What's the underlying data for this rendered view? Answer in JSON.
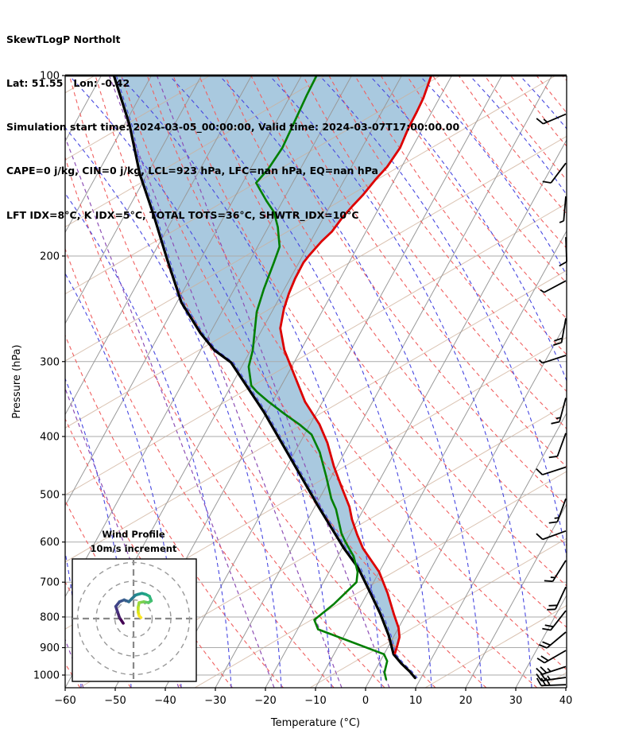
{
  "header": {
    "title": "SkewTLogP Northolt",
    "location": "Lat: 51.55   Lon: -0.42",
    "times": "Simulation start time: 2024-03-05_00:00:00, Valid time: 2024-03-07T17:00:00.00",
    "indices1": "CAPE=0 j/kg, CIN=0 j/kg, LCL=923 hPa, LFC=nan hPa, EQ=nan hPa",
    "indices2": "LFT IDX=8°C, K IDX=5°C, TOTAL TOTS=36°C, SHWTR_IDX=10°C"
  },
  "chart_data": {
    "type": "line",
    "subtype": "skewt_logp",
    "title": "SkewTLogP Northolt",
    "xlabel": "Temperature (°C)",
    "ylabel": "Pressure (hPa)",
    "pressure_ticks": [
      100,
      200,
      300,
      400,
      500,
      600,
      700,
      800,
      900,
      1000
    ],
    "temp_ticks": [
      -60,
      -50,
      -40,
      -30,
      -20,
      -10,
      0,
      10,
      20,
      30,
      40
    ],
    "ylim": [
      100,
      1050
    ],
    "xlim": [
      -60,
      40
    ],
    "grid": true,
    "legend_position": "none",
    "series": [
      {
        "name": "temperature",
        "color": "#dd0000",
        "points": [
          [
            100,
            -54.1
          ],
          [
            109,
            -53.2
          ],
          [
            115,
            -53.0
          ],
          [
            122,
            -52.9
          ],
          [
            132,
            -52.4
          ],
          [
            142,
            -52.9
          ],
          [
            149,
            -53.8
          ],
          [
            158,
            -54.6
          ],
          [
            165,
            -55.5
          ],
          [
            173,
            -56.3
          ],
          [
            182,
            -56.8
          ],
          [
            189,
            -57.8
          ],
          [
            199,
            -58.7
          ],
          [
            205,
            -59.1
          ],
          [
            218,
            -59.0
          ],
          [
            231,
            -58.6
          ],
          [
            245,
            -57.9
          ],
          [
            264,
            -56.5
          ],
          [
            287,
            -53.3
          ],
          [
            310,
            -49.5
          ],
          [
            350,
            -43.5
          ],
          [
            382,
            -38.1
          ],
          [
            410,
            -34.5
          ],
          [
            449,
            -30.6
          ],
          [
            486,
            -26.8
          ],
          [
            524,
            -23.1
          ],
          [
            550,
            -21.2
          ],
          [
            583,
            -18.5
          ],
          [
            615,
            -15.8
          ],
          [
            673,
            -10.0
          ],
          [
            730,
            -6.0
          ],
          [
            792,
            -2.4
          ],
          [
            834,
            0.0
          ],
          [
            864,
            1.2
          ],
          [
            893,
            1.7
          ],
          [
            920,
            2.1
          ]
        ]
      },
      {
        "name": "dewpoint",
        "color": "#007f00",
        "points": [
          [
            100,
            -77.0
          ],
          [
            108,
            -76.8
          ],
          [
            118,
            -76.4
          ],
          [
            132,
            -75.9
          ],
          [
            143,
            -76.4
          ],
          [
            151,
            -77.3
          ],
          [
            162,
            -73.2
          ],
          [
            169,
            -70.5
          ],
          [
            179,
            -68.1
          ],
          [
            193,
            -65.6
          ],
          [
            205,
            -65.0
          ],
          [
            227,
            -64.1
          ],
          [
            248,
            -63.0
          ],
          [
            287,
            -59.6
          ],
          [
            306,
            -58.6
          ],
          [
            329,
            -56.0
          ],
          [
            337,
            -54.2
          ],
          [
            350,
            -50.8
          ],
          [
            367,
            -46.2
          ],
          [
            382,
            -42.1
          ],
          [
            397,
            -38.6
          ],
          [
            425,
            -35.0
          ],
          [
            467,
            -31.0
          ],
          [
            508,
            -27.6
          ],
          [
            529,
            -25.5
          ],
          [
            580,
            -21.8
          ],
          [
            598,
            -20.2
          ],
          [
            634,
            -16.8
          ],
          [
            673,
            -14.3
          ],
          [
            700,
            -13.4
          ],
          [
            761,
            -15.5
          ],
          [
            809,
            -17.7
          ],
          [
            839,
            -15.9
          ],
          [
            923,
            0.0
          ],
          [
            948,
            1.4
          ],
          [
            990,
            2.1
          ],
          [
            1017,
            3.2
          ]
        ]
      },
      {
        "name": "parcel",
        "color": "#000000",
        "points": [
          [
            100,
            -117.5
          ],
          [
            121,
            -108.9
          ],
          [
            146,
            -101.5
          ],
          [
            171,
            -94.2
          ],
          [
            202,
            -86.8
          ],
          [
            239,
            -79.1
          ],
          [
            269,
            -71.9
          ],
          [
            287,
            -67.3
          ],
          [
            301,
            -62.6
          ],
          [
            364,
            -50.6
          ],
          [
            446,
            -38.7
          ],
          [
            521,
            -29.6
          ],
          [
            615,
            -19.6
          ],
          [
            662,
            -14.7
          ],
          [
            726,
            -9.7
          ],
          [
            790,
            -5.2
          ],
          [
            859,
            -1.1
          ],
          [
            923,
            1.9
          ],
          [
            957,
            4.5
          ],
          [
            986,
            7.0
          ],
          [
            1011,
            8.8
          ]
        ]
      }
    ],
    "shade": {
      "between": [
        "parcel",
        "temperature"
      ],
      "color": "#a9c9df"
    },
    "wind_barbs": [
      {
        "p": 116,
        "dir": 247,
        "spd": 15
      },
      {
        "p": 140,
        "dir": 217,
        "spd": 10
      },
      {
        "p": 159,
        "dir": 185,
        "spd": 5
      },
      {
        "p": 186,
        "dir": 178,
        "spd": 10
      },
      {
        "p": 220,
        "dir": 242,
        "spd": 5
      },
      {
        "p": 254,
        "dir": 190,
        "spd": 20
      },
      {
        "p": 293,
        "dir": 252,
        "spd": 5
      },
      {
        "p": 345,
        "dir": 195,
        "spd": 15
      },
      {
        "p": 395,
        "dir": 200,
        "spd": 10
      },
      {
        "p": 450,
        "dir": 252,
        "spd": 10
      },
      {
        "p": 508,
        "dir": 200,
        "spd": 15
      },
      {
        "p": 575,
        "dir": 250,
        "spd": 10
      },
      {
        "p": 644,
        "dir": 212,
        "spd": 15
      },
      {
        "p": 713,
        "dir": 205,
        "spd": 20
      },
      {
        "p": 781,
        "dir": 218,
        "spd": 20
      },
      {
        "p": 848,
        "dir": 230,
        "spd": 20
      },
      {
        "p": 910,
        "dir": 240,
        "spd": 20
      },
      {
        "p": 968,
        "dir": 252,
        "spd": 25
      },
      {
        "p": 1009,
        "dir": 262,
        "spd": 25
      },
      {
        "p": 1038,
        "dir": 268,
        "spd": 30
      }
    ],
    "hodograph": {
      "title1": "Wind Profile",
      "title2": "10m/s increment",
      "ring_values_ms": [
        10,
        20,
        30
      ],
      "trace_uv": [
        [
          -5.5,
          -2.5
        ],
        [
          -7.5,
          0.5
        ],
        [
          -8.5,
          3.5
        ],
        [
          -9.5,
          6.5
        ],
        [
          -7.5,
          9
        ],
        [
          -5,
          10
        ],
        [
          -2.5,
          9
        ],
        [
          -1,
          10.5
        ],
        [
          1,
          12.5
        ],
        [
          2.5,
          13
        ],
        [
          4.5,
          13.5
        ],
        [
          6.5,
          13
        ],
        [
          8.5,
          12
        ],
        [
          9.5,
          9.5
        ],
        [
          8,
          8.5
        ],
        [
          5.5,
          9
        ],
        [
          3,
          8.5
        ],
        [
          2.5,
          6
        ],
        [
          2.5,
          3.5
        ],
        [
          3,
          1.5
        ],
        [
          4,
          0.5
        ]
      ],
      "trace_colors": [
        "#440154",
        "#46256c",
        "#45327e",
        "#414487",
        "#3b528b",
        "#355f8d",
        "#2f6c8e",
        "#2a788e",
        "#25848e",
        "#21918c",
        "#1e9c89",
        "#22a884",
        "#2fb47c",
        "#44bf70",
        "#5ec962",
        "#7ad151",
        "#9bd93c",
        "#bddf26",
        "#dfe318",
        "#fde725"
      ]
    },
    "background": {
      "isotherm_color": "#999999",
      "isobar_color": "#aaaaaa",
      "dry_adiabat_color": "#f06060",
      "moist_adiabat_color": "#4747e0",
      "aux_line_color": "#cdaf98",
      "mixing_line_color": "#8e4fb5",
      "isotherm_range": [
        -130,
        40,
        10
      ],
      "dry_adiabat_theta_range": [
        -60,
        200,
        10
      ],
      "moist_adiabat_bottom_x": [
        -150,
        1000,
        63
      ],
      "aux_bottom_x": [
        -1350,
        700,
        145
      ],
      "mixing_bottom_x": [
        105,
        225,
        345,
        430,
        490
      ]
    }
  }
}
